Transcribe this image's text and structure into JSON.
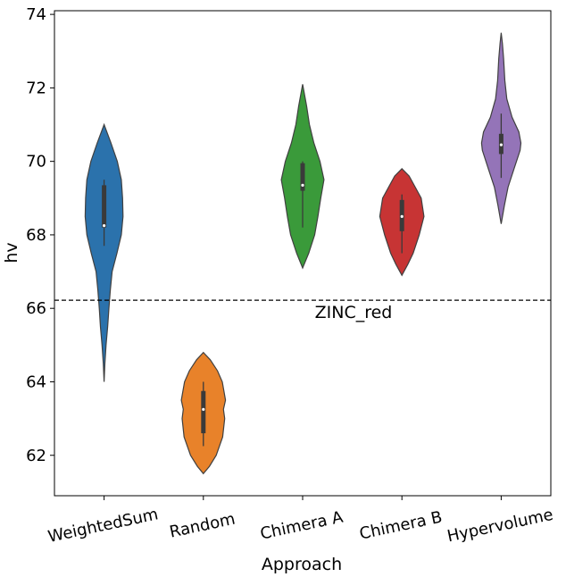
{
  "chart_data": {
    "type": "violin",
    "xlabel": "Approach",
    "ylabel": "hv",
    "ylim": [
      60.9,
      74.1
    ],
    "yticks": [
      62,
      64,
      66,
      68,
      70,
      72,
      74
    ],
    "ytick_labels": [
      "62",
      "64",
      "66",
      "68",
      "70",
      "72",
      "74"
    ],
    "categories": [
      "WeightedSum",
      "Random",
      "Chimera A",
      "Chimera B",
      "Hypervolume"
    ],
    "colors": [
      "#2b72ac",
      "#e8822a",
      "#3a9a3a",
      "#c73434",
      "#9474b8"
    ],
    "reference_line": {
      "value": 66.22,
      "label": "ZINC_red",
      "style": "dashed"
    },
    "violins": [
      {
        "min": 64.0,
        "max": 71.0,
        "q1": 68.2,
        "median": 68.25,
        "q3": 69.35,
        "whisker_low": 67.7,
        "whisker_high": 69.5,
        "profile": [
          [
            64.0,
            0
          ],
          [
            64.5,
            0.2
          ],
          [
            65.0,
            0.5
          ],
          [
            65.5,
            0.9
          ],
          [
            66.0,
            1.2
          ],
          [
            66.5,
            1.55
          ],
          [
            67.0,
            2.0
          ],
          [
            67.5,
            3.2
          ],
          [
            68.0,
            4.3
          ],
          [
            68.5,
            4.7
          ],
          [
            69.0,
            4.6
          ],
          [
            69.5,
            4.3
          ],
          [
            70.0,
            3.3
          ],
          [
            70.5,
            1.7
          ],
          [
            71.0,
            0
          ]
        ]
      },
      {
        "min": 61.5,
        "max": 64.8,
        "q1": 62.6,
        "median": 63.25,
        "q3": 63.75,
        "whisker_low": 62.25,
        "whisker_high": 64.0,
        "profile": [
          [
            61.5,
            0
          ],
          [
            61.7,
            1.5
          ],
          [
            62.0,
            3.2
          ],
          [
            62.5,
            4.8
          ],
          [
            63.0,
            5.3
          ],
          [
            63.25,
            5.0
          ],
          [
            63.5,
            5.5
          ],
          [
            64.0,
            4.7
          ],
          [
            64.3,
            3.5
          ],
          [
            64.6,
            1.7
          ],
          [
            64.8,
            0
          ]
        ]
      },
      {
        "min": 67.1,
        "max": 72.1,
        "q1": 69.2,
        "median": 69.35,
        "q3": 69.95,
        "whisker_low": 68.2,
        "whisker_high": 70.0,
        "profile": [
          [
            67.1,
            0
          ],
          [
            67.5,
            1.5
          ],
          [
            68.0,
            3.0
          ],
          [
            68.5,
            3.8
          ],
          [
            69.0,
            4.5
          ],
          [
            69.5,
            5.3
          ],
          [
            70.0,
            4.3
          ],
          [
            70.5,
            2.8
          ],
          [
            71.0,
            1.7
          ],
          [
            71.5,
            1.0
          ],
          [
            72.1,
            0
          ]
        ]
      },
      {
        "min": 66.9,
        "max": 69.8,
        "q1": 68.1,
        "median": 68.5,
        "q3": 68.95,
        "whisker_low": 67.5,
        "whisker_high": 69.1,
        "profile": [
          [
            66.9,
            0
          ],
          [
            67.2,
            1.5
          ],
          [
            67.5,
            2.8
          ],
          [
            68.0,
            4.3
          ],
          [
            68.5,
            5.5
          ],
          [
            69.0,
            4.8
          ],
          [
            69.3,
            3.3
          ],
          [
            69.6,
            1.8
          ],
          [
            69.8,
            0
          ]
        ]
      },
      {
        "min": 68.3,
        "max": 73.5,
        "q1": 70.2,
        "median": 70.45,
        "q3": 70.75,
        "whisker_low": 69.55,
        "whisker_high": 71.3,
        "profile": [
          [
            68.3,
            0
          ],
          [
            68.8,
            0.8
          ],
          [
            69.3,
            1.7
          ],
          [
            69.8,
            3.2
          ],
          [
            70.3,
            4.7
          ],
          [
            70.5,
            4.9
          ],
          [
            70.8,
            4.4
          ],
          [
            71.2,
            2.7
          ],
          [
            71.7,
            1.4
          ],
          [
            72.2,
            0.9
          ],
          [
            72.8,
            0.6
          ],
          [
            73.2,
            0.3
          ],
          [
            73.5,
            0
          ]
        ]
      }
    ]
  }
}
